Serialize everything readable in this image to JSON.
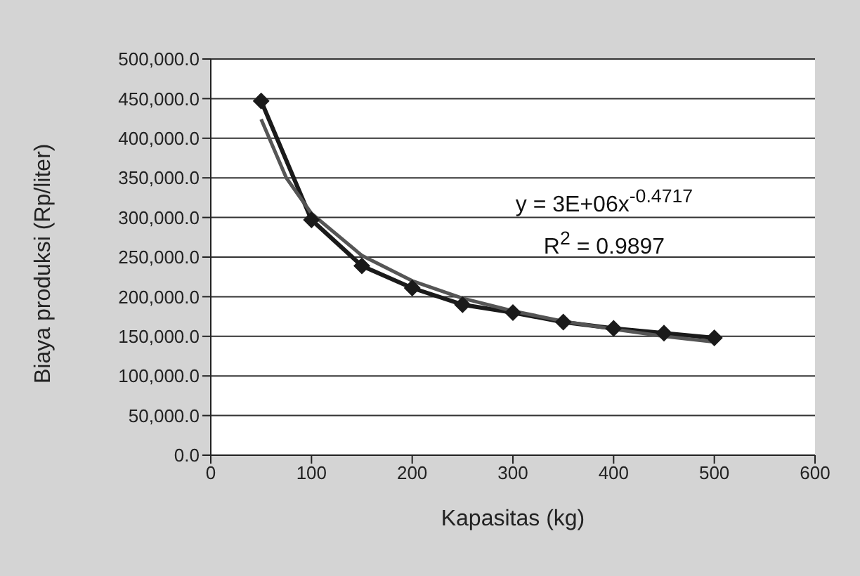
{
  "chart_data": {
    "type": "line",
    "xlabel": "Kapasitas (kg)",
    "ylabel": "Biaya produksi (Rp/liter)",
    "series": [
      {
        "color": "#1a1a1a",
        "marker": "diamond",
        "x": [
          50,
          100,
          150,
          200,
          250,
          300,
          350,
          400,
          450,
          500
        ],
        "values": [
          447000,
          297000,
          239000,
          211000,
          190000,
          180000,
          168000,
          160000,
          154000,
          148000
        ]
      },
      {
        "color": "#555555",
        "marker": "none",
        "x": [
          50,
          75,
          100,
          150,
          200,
          250,
          300,
          350,
          400,
          450,
          500
        ],
        "values": [
          424000,
          350000,
          305000,
          252000,
          220000,
          198000,
          182000,
          169000,
          159000,
          150000,
          143000
        ]
      }
    ],
    "annotations": [
      "y = 3E+06x$^{-0.4717}$",
      "R$^{2}$ = 0.9897"
    ],
    "xlim": [
      0,
      600
    ],
    "xticks": [
      0,
      100,
      200,
      300,
      400,
      500,
      600
    ],
    "ylim": [
      0,
      500000
    ],
    "yticks": [
      {
        "value": 0,
        "label": "0.0"
      },
      {
        "value": 50000,
        "label": "50,000.0"
      },
      {
        "value": 100000,
        "label": "100,000.0"
      },
      {
        "value": 150000,
        "label": "150,000.0"
      },
      {
        "value": 200000,
        "label": "200,000.0"
      },
      {
        "value": 250000,
        "label": "250,000.0"
      },
      {
        "value": 300000,
        "label": "300,000.0"
      },
      {
        "value": 350000,
        "label": "350,000.0"
      },
      {
        "value": 400000,
        "label": "400,000.0"
      },
      {
        "value": 450000,
        "label": "450,000.0"
      },
      {
        "value": 500000,
        "label": "500,000.0"
      }
    ],
    "grid": "y",
    "legend": false
  }
}
